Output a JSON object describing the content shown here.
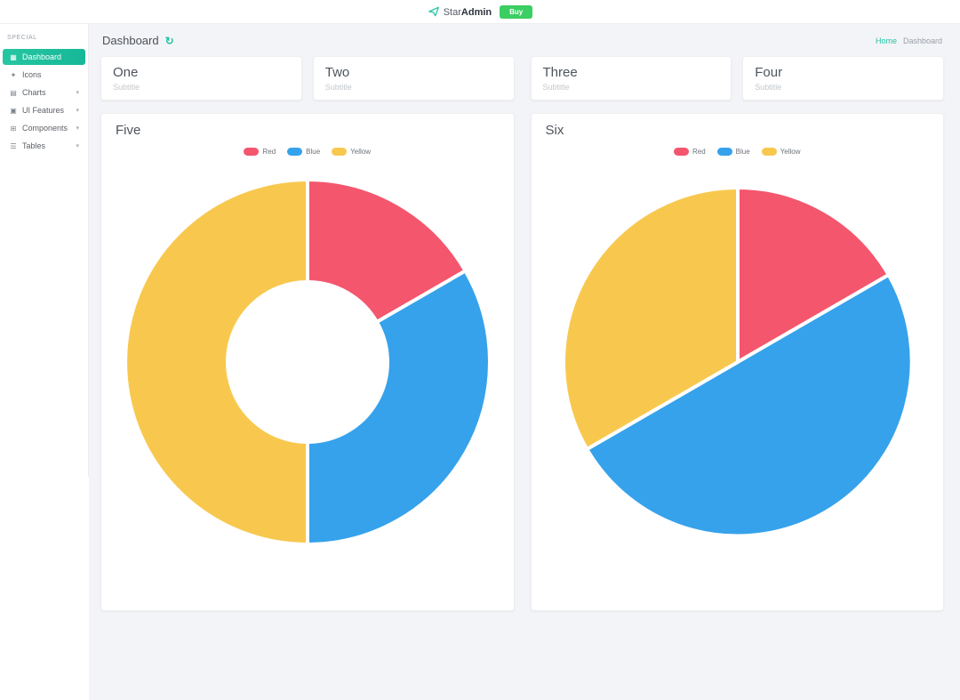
{
  "navbar": {
    "brand_prefix": "Star",
    "brand_suffix": "Admin",
    "action_label": "Buy"
  },
  "sidebar": {
    "section_label": "SPECIAL",
    "items": [
      {
        "label": "Dashboard",
        "glyph": "▦",
        "active": true,
        "expandable": false
      },
      {
        "label": "Icons",
        "glyph": "✦",
        "active": false,
        "expandable": false
      },
      {
        "label": "Charts",
        "glyph": "▤",
        "active": false,
        "expandable": true
      },
      {
        "label": "UI Features",
        "glyph": "▣",
        "active": false,
        "expandable": true
      },
      {
        "label": "Components",
        "glyph": "⊞",
        "active": false,
        "expandable": true
      },
      {
        "label": "Tables",
        "glyph": "☰",
        "active": false,
        "expandable": true
      }
    ]
  },
  "header": {
    "title": "Dashboard",
    "breadcrumb": {
      "home": "Home",
      "current": "Dashboard"
    }
  },
  "stat_cards": [
    {
      "title": "One",
      "subtitle": "Subtitle"
    },
    {
      "title": "Two",
      "subtitle": "Subtitle"
    },
    {
      "title": "Three",
      "subtitle": "Subtitle"
    },
    {
      "title": "Four",
      "subtitle": "Subtitle"
    }
  ],
  "chart_data": [
    {
      "type": "doughnut",
      "title": "Five",
      "labels": [
        "Red",
        "Blue",
        "Yellow"
      ],
      "values": [
        10,
        20,
        30
      ],
      "colors": [
        "#f4566e",
        "#36a2eb",
        "#f8c84e"
      ],
      "legend_position": "top"
    },
    {
      "type": "pie",
      "title": "Six",
      "labels": [
        "Red",
        "Blue",
        "Yellow"
      ],
      "values": [
        10,
        30,
        20
      ],
      "colors": [
        "#f4566e",
        "#36a2eb",
        "#f8c84e"
      ],
      "legend_position": "top"
    }
  ],
  "ui": {
    "chevron": "▾",
    "refresh_glyph": "↻"
  },
  "colors": {
    "accent_teal": "#22c4a5",
    "button_green": "#3bce62",
    "main_background": "#f3f4f7"
  }
}
